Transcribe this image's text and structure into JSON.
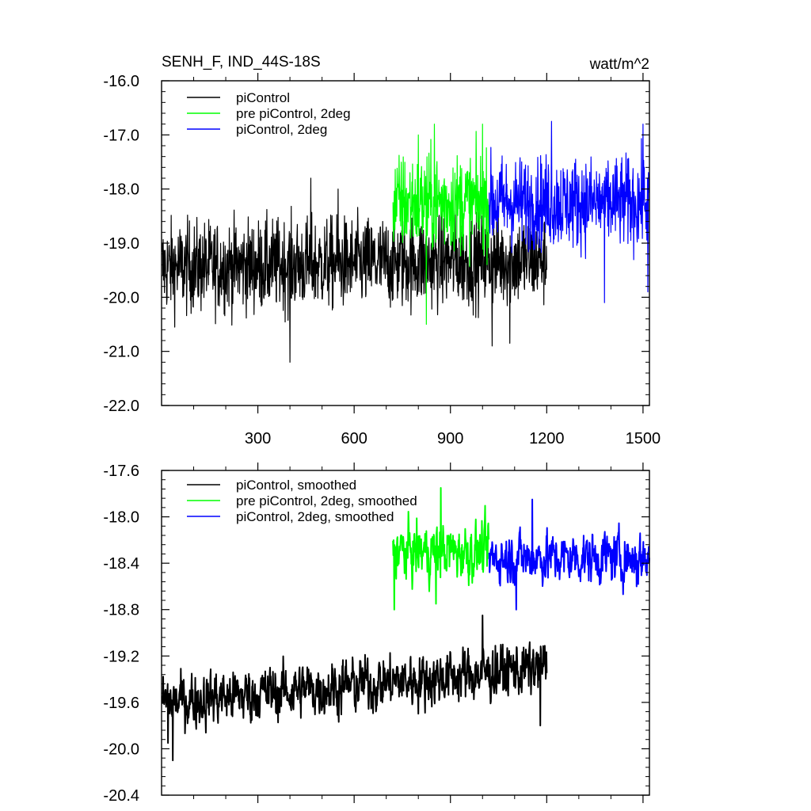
{
  "figure": {
    "title_left": "SENH_F, IND_44S-18S",
    "title_right": "watt/m^2"
  },
  "chart_data": [
    {
      "type": "line",
      "xlim": [
        0,
        1520
      ],
      "ylim": [
        -22.0,
        -16.0
      ],
      "xticks": [
        300,
        600,
        900,
        1200,
        1500
      ],
      "xtick_labels": [
        "300",
        "600",
        "900",
        "1200",
        "1500"
      ],
      "yticks": [
        -16.0,
        -17.0,
        -18.0,
        -19.0,
        -20.0,
        -21.0,
        -22.0
      ],
      "ytick_labels": [
        "-16.0",
        "-17.0",
        "-18.0",
        "-19.0",
        "-20.0",
        "-21.0",
        "-22.0"
      ],
      "grid": false,
      "legend_position": "top-left",
      "series": [
        {
          "name": "piControl",
          "color": "#000000",
          "x_range": [
            1,
            1200
          ],
          "mean": -19.45,
          "spread": 0.42,
          "mean_late": -19.3,
          "spikes": [
            [
              400,
              -21.2
            ],
            [
              1085,
              -20.85
            ],
            [
              1030,
              -20.9
            ],
            [
              465,
              -17.8
            ],
            [
              550,
              -18.0
            ]
          ]
        },
        {
          "name": "pre piControl, 2deg",
          "color": "#00ff00",
          "x_range": [
            721,
            1020
          ],
          "mean": -18.25,
          "spread": 0.45,
          "spikes": [
            [
              850,
              -16.8
            ],
            [
              1000,
              -16.8
            ],
            [
              825,
              -20.5
            ],
            [
              800,
              -17.0
            ]
          ]
        },
        {
          "name": "piControl, 2deg",
          "color": "#0000ff",
          "x_range": [
            1021,
            1520
          ],
          "mean": -18.25,
          "spread": 0.42,
          "spikes": [
            [
              1215,
              -16.75
            ],
            [
              1380,
              -20.1
            ],
            [
              1515,
              -19.9
            ],
            [
              1500,
              -16.8
            ]
          ]
        }
      ]
    },
    {
      "type": "line",
      "xlim": [
        0,
        1520
      ],
      "ylim": [
        -20.4,
        -17.6
      ],
      "yticks": [
        -17.6,
        -18.0,
        -18.4,
        -18.8,
        -19.2,
        -19.6,
        -20.0,
        -20.4
      ],
      "ytick_labels": [
        "-17.6",
        "-18.0",
        "-18.4",
        "-18.8",
        "-19.2",
        "-19.6",
        "-20.0",
        "-20.4"
      ],
      "grid": false,
      "legend_position": "top-left",
      "series": [
        {
          "name": "piControl, smoothed",
          "color": "#000000",
          "x_range": [
            1,
            1200
          ],
          "mean_start": -19.6,
          "mean_end": -19.3,
          "spread": 0.12,
          "spikes": [
            [
              35,
              -20.1
            ],
            [
              20,
              -19.95
            ],
            [
              1000,
              -18.85
            ],
            [
              1180,
              -19.8
            ]
          ]
        },
        {
          "name": "pre piControl, 2deg, smoothed",
          "color": "#00ff00",
          "x_range": [
            721,
            1020
          ],
          "mean": -18.3,
          "spread": 0.12,
          "spikes": [
            [
              725,
              -18.8
            ],
            [
              870,
              -17.75
            ],
            [
              855,
              -18.75
            ]
          ]
        },
        {
          "name": "piControl, 2deg, smoothed",
          "color": "#0000ff",
          "x_range": [
            1021,
            1520
          ],
          "mean": -18.35,
          "spread": 0.11,
          "spikes": [
            [
              1155,
              -17.85
            ],
            [
              1105,
              -18.8
            ],
            [
              1480,
              -18.6
            ]
          ]
        }
      ]
    }
  ]
}
